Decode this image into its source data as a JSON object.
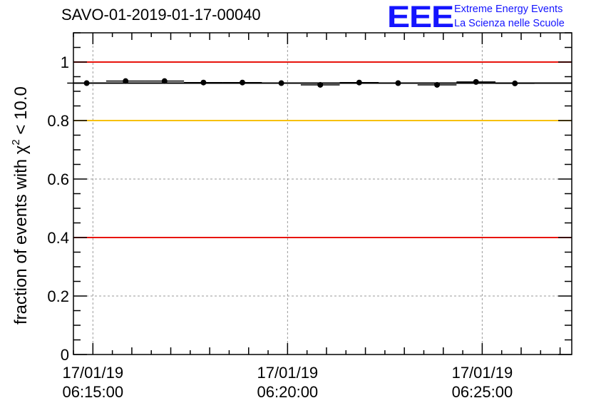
{
  "header": {
    "title": "SAVO-01-2019-01-17-00040"
  },
  "logo": {
    "mark": "EEE",
    "line1": "Extreme Energy Events",
    "line2": "La Scienza nelle Scuole",
    "color": "#1414ff"
  },
  "chart_data": {
    "type": "scatter",
    "title": "SAVO-01-2019-01-17-00040",
    "xlabel": "",
    "ylabel_prefix": "fraction of events with",
    "ylabel_symbol": "χ",
    "ylabel_exponent": "2",
    "ylabel_suffix": " < 10.0",
    "ylim": [
      0,
      1.1
    ],
    "xlim_minutes": [
      -0.5,
      12.3
    ],
    "grid": true,
    "y_ticks": [
      {
        "value": 0,
        "label": "0"
      },
      {
        "value": 0.2,
        "label": "0.2"
      },
      {
        "value": 0.4,
        "label": "0.4"
      },
      {
        "value": 0.6,
        "label": "0.6"
      },
      {
        "value": 0.8,
        "label": "0.8"
      },
      {
        "value": 1,
        "label": "1"
      }
    ],
    "x_ticks": [
      {
        "minute": 0,
        "date": "17/01/19",
        "time": "06:15:00"
      },
      {
        "minute": 5,
        "date": "17/01/19",
        "time": "06:20:00"
      },
      {
        "minute": 10,
        "date": "17/01/19",
        "time": "06:25:00"
      }
    ],
    "reference_lines": [
      {
        "value": 1.0,
        "color": "#e8140c"
      },
      {
        "value": 0.8,
        "color": "#f7c000"
      },
      {
        "value": 0.4,
        "color": "#e8140c"
      }
    ],
    "mean_line": {
      "value": 0.928,
      "color": "#000000"
    },
    "series": [
      {
        "name": "fraction",
        "bin_width_minutes": 1.0,
        "x_minutes": [
          -0.16,
          0.84,
          1.84,
          2.84,
          3.84,
          4.84,
          5.84,
          6.84,
          7.84,
          8.84,
          9.84,
          10.84
        ],
        "values": [
          0.928,
          0.935,
          0.935,
          0.93,
          0.93,
          0.928,
          0.922,
          0.93,
          0.928,
          0.922,
          0.932,
          0.927
        ]
      }
    ]
  }
}
